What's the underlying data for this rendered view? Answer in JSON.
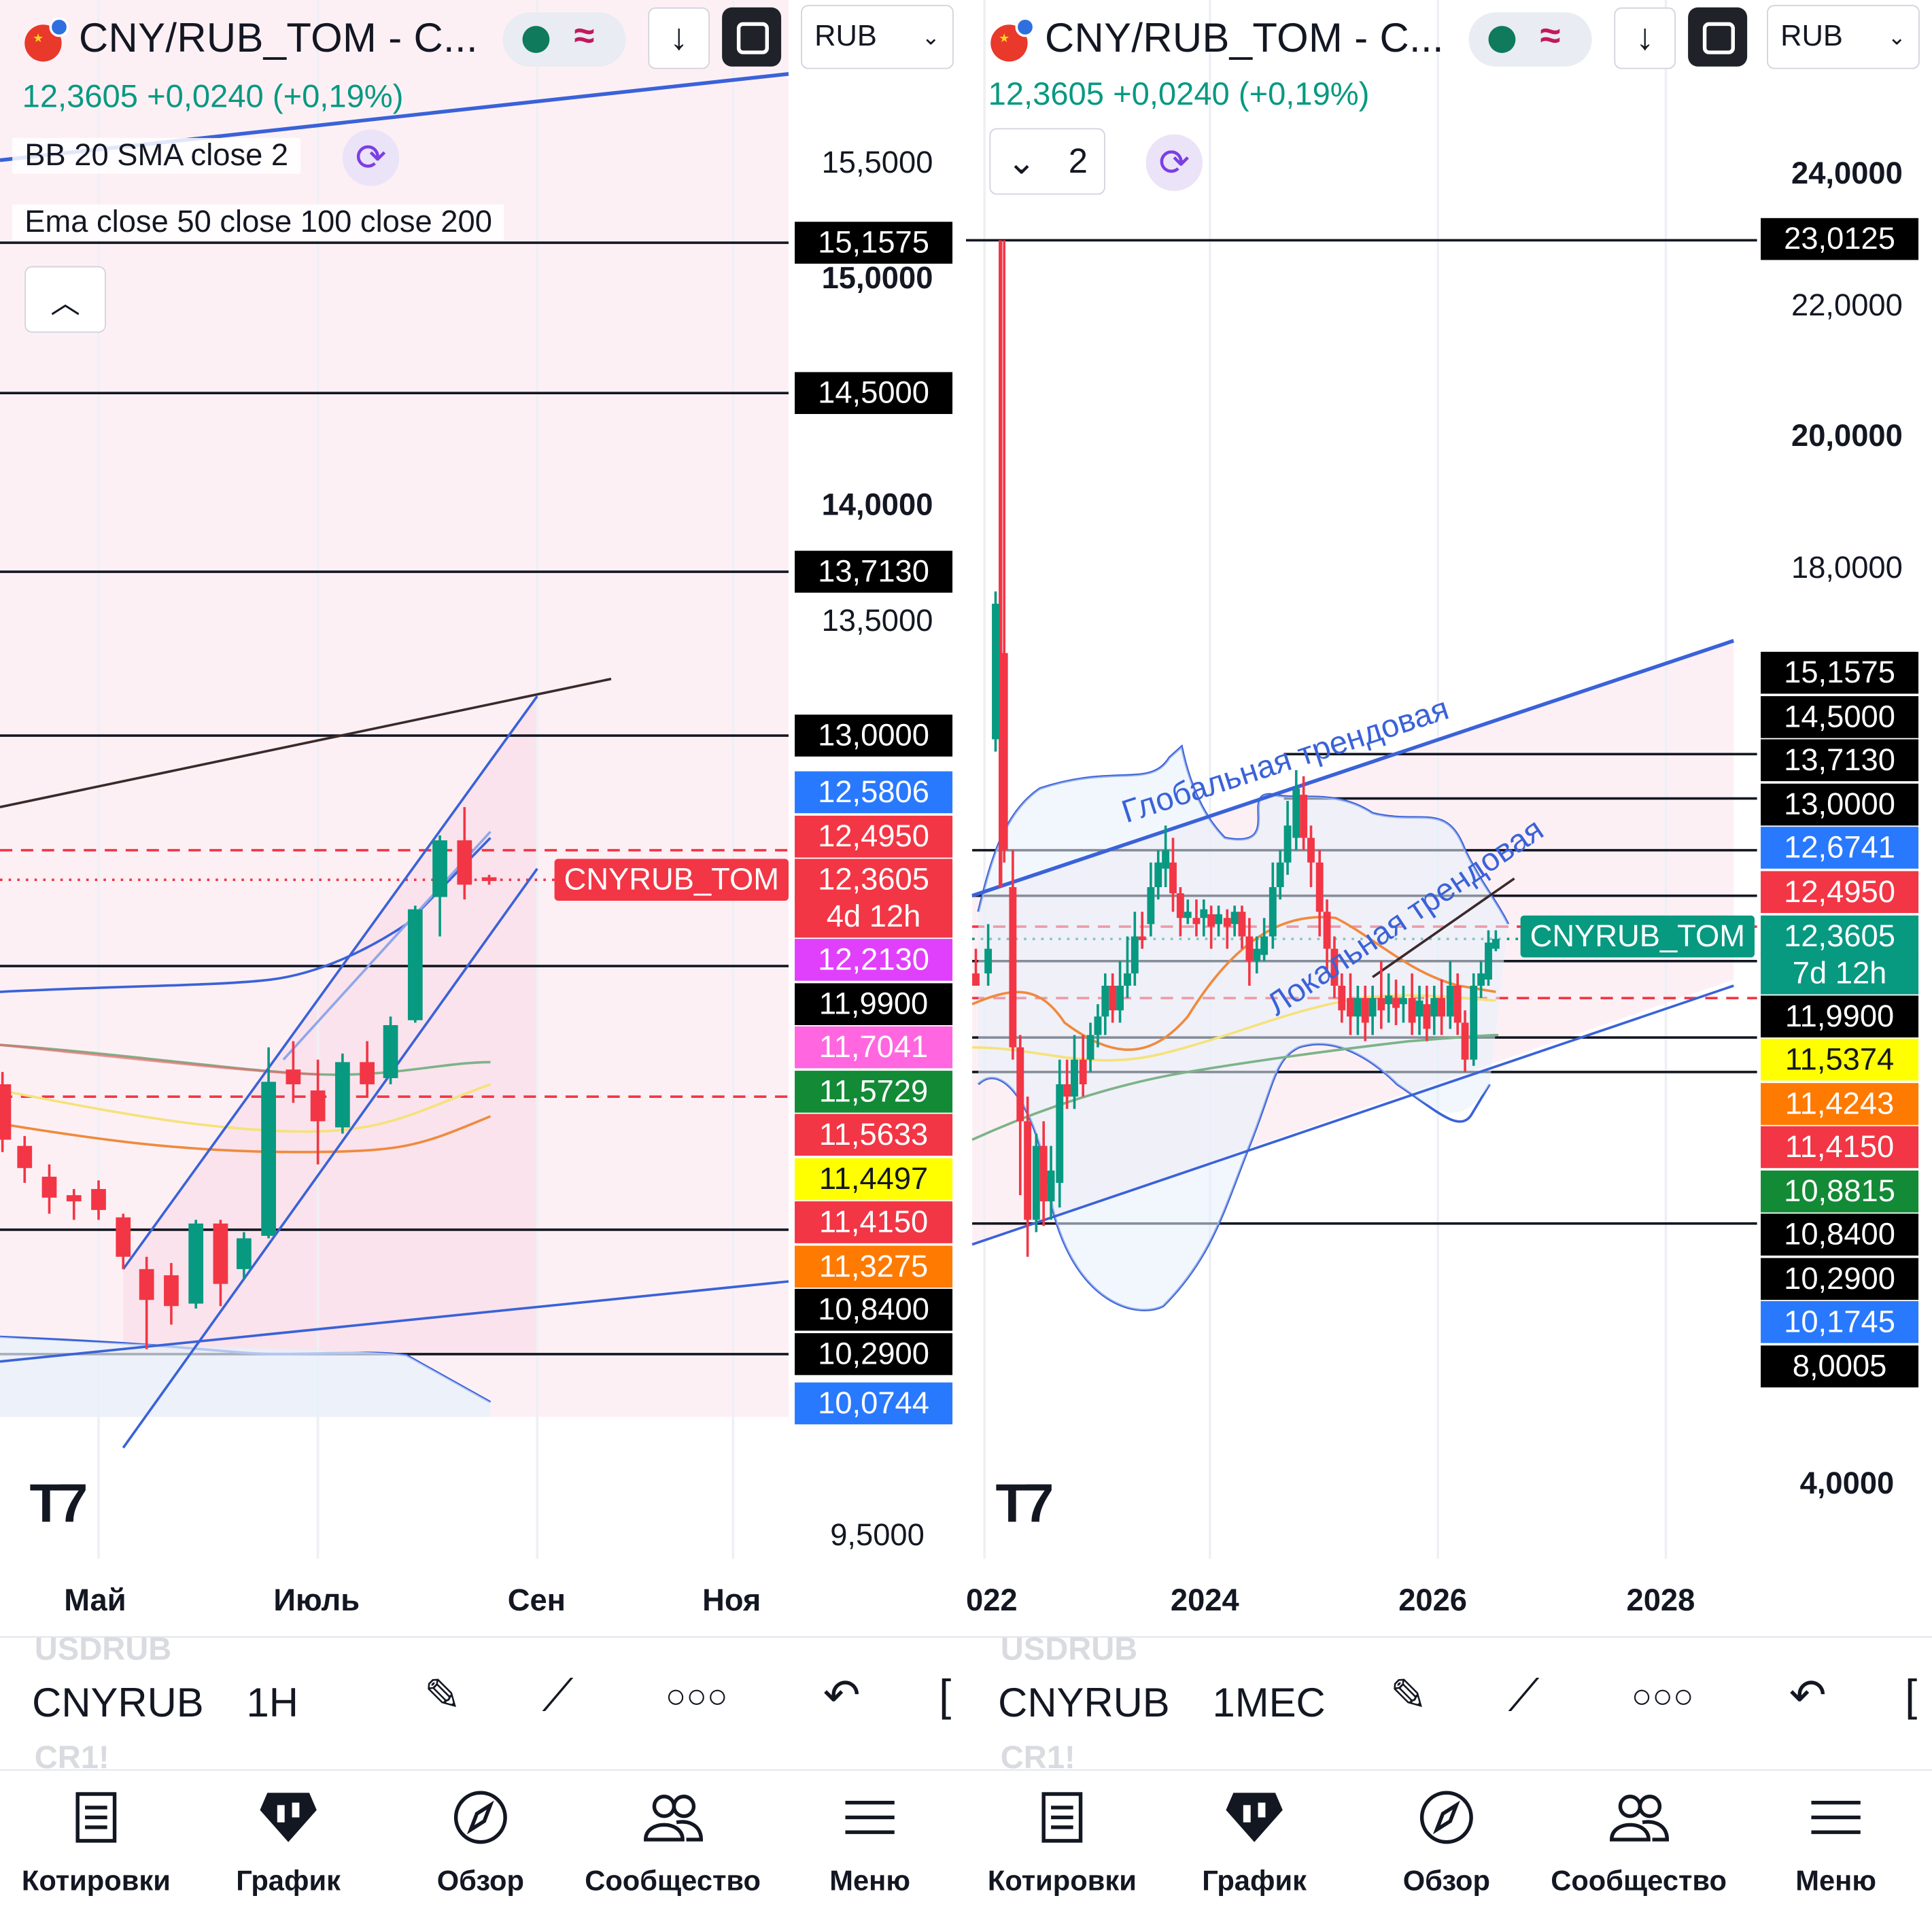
{
  "panels": [
    {
      "symbol_title": "CNY/RUB_TOM - C...",
      "quote": {
        "last": "12,3605",
        "change": "+0,0240",
        "change_pct": "(+0,19%)"
      },
      "currency": "RUB",
      "indicators": {
        "bb": "BB 20 SMA close 2",
        "ema": "Ema close 50 close 100 close 200"
      },
      "price_axis": [
        "15,5000",
        "15,0000",
        "14,0000",
        "13,5000",
        "9,5000"
      ],
      "price_labels": [
        {
          "value": "15,1575",
          "bg": "#000000",
          "fg": "#ffffff"
        },
        {
          "value": "14,5000",
          "bg": "#000000",
          "fg": "#ffffff"
        },
        {
          "value": "13,7130",
          "bg": "#000000",
          "fg": "#ffffff"
        },
        {
          "value": "13,0000",
          "bg": "#000000",
          "fg": "#ffffff"
        },
        {
          "value": "12,5806",
          "bg": "#2979ff",
          "fg": "#ffffff"
        },
        {
          "value": "12,4950",
          "bg": "#f23645",
          "fg": "#ffffff"
        },
        {
          "value": "12,3605",
          "bg": "#f23645",
          "fg": "#ffffff"
        },
        {
          "value": "4d 12h",
          "bg": "#f23645",
          "fg": "#ffffff"
        },
        {
          "value": "12,2130",
          "bg": "#e040fb",
          "fg": "#ffffff"
        },
        {
          "value": "11,9900",
          "bg": "#000000",
          "fg": "#ffffff"
        },
        {
          "value": "11,7041",
          "bg": "#ff66e0",
          "fg": "#ffffff"
        },
        {
          "value": "11,5729",
          "bg": "#138a36",
          "fg": "#ffffff"
        },
        {
          "value": "11,5633",
          "bg": "#f23645",
          "fg": "#ffffff"
        },
        {
          "value": "11,4497",
          "bg": "#ffff00",
          "fg": "#131722"
        },
        {
          "value": "11,4150",
          "bg": "#f23645",
          "fg": "#ffffff"
        },
        {
          "value": "11,3275",
          "bg": "#ff7a00",
          "fg": "#ffffff"
        },
        {
          "value": "10,8400",
          "bg": "#000000",
          "fg": "#ffffff"
        },
        {
          "value": "10,2900",
          "bg": "#000000",
          "fg": "#ffffff"
        },
        {
          "value": "10,0744",
          "bg": "#2979ff",
          "fg": "#ffffff"
        }
      ],
      "series_tag": "CNYRUB_TOM",
      "time_axis": [
        "Май",
        "Июль",
        "Сен",
        "Ноя"
      ],
      "toolbar": {
        "symbol": "CNYRUB",
        "ghost_above": "USDRUB",
        "ghost_below": "CR1!",
        "timeframe": "1H"
      }
    },
    {
      "symbol_title": "CNY/RUB_TOM - C...",
      "quote": {
        "last": "12,3605",
        "change": "+0,0240",
        "change_pct": "(+0,19%)"
      },
      "currency": "RUB",
      "indicators_collapsed": {
        "count": "2"
      },
      "price_axis": [
        "24,0000",
        "22,0000",
        "20,0000",
        "18,0000",
        "4,0000"
      ],
      "price_labels": [
        {
          "value": "23,0125",
          "bg": "#000000",
          "fg": "#ffffff"
        },
        {
          "value": "15,1575",
          "bg": "#000000",
          "fg": "#ffffff"
        },
        {
          "value": "14,5000",
          "bg": "#000000",
          "fg": "#ffffff"
        },
        {
          "value": "13,7130",
          "bg": "#000000",
          "fg": "#ffffff"
        },
        {
          "value": "13,0000",
          "bg": "#000000",
          "fg": "#ffffff"
        },
        {
          "value": "12,6741",
          "bg": "#2979ff",
          "fg": "#ffffff"
        },
        {
          "value": "12,4950",
          "bg": "#f23645",
          "fg": "#ffffff"
        },
        {
          "value": "12,3605",
          "bg": "#089981",
          "fg": "#ffffff"
        },
        {
          "value": "7d 12h",
          "bg": "#089981",
          "fg": "#ffffff"
        },
        {
          "value": "11,9900",
          "bg": "#000000",
          "fg": "#ffffff"
        },
        {
          "value": "11,5374",
          "bg": "#ffff00",
          "fg": "#131722"
        },
        {
          "value": "11,4243",
          "bg": "#ff7a00",
          "fg": "#ffffff"
        },
        {
          "value": "11,4150",
          "bg": "#f23645",
          "fg": "#ffffff"
        },
        {
          "value": "10,8815",
          "bg": "#138a36",
          "fg": "#ffffff"
        },
        {
          "value": "10,8400",
          "bg": "#000000",
          "fg": "#ffffff"
        },
        {
          "value": "10,2900",
          "bg": "#000000",
          "fg": "#ffffff"
        },
        {
          "value": "10,1745",
          "bg": "#2979ff",
          "fg": "#ffffff"
        },
        {
          "value": "8,0005",
          "bg": "#000000",
          "fg": "#ffffff"
        }
      ],
      "series_tag": "CNYRUB_TOM",
      "annotations": [
        "Глобальная трендовая",
        "Локальная трендовая"
      ],
      "time_axis": [
        "022",
        "2024",
        "2026",
        "2028"
      ],
      "toolbar": {
        "symbol": "CNYRUB",
        "ghost_above": "USDRUB",
        "ghost_below": "CR1!",
        "timeframe": "1МЕС"
      }
    }
  ],
  "nav": [
    "Котировки",
    "График",
    "Обзор",
    "Сообщество",
    "Меню"
  ],
  "colors": {
    "up": "#089981",
    "down": "#f23645",
    "trend": "#3a62d8",
    "band_fill": "#fde7ef"
  }
}
